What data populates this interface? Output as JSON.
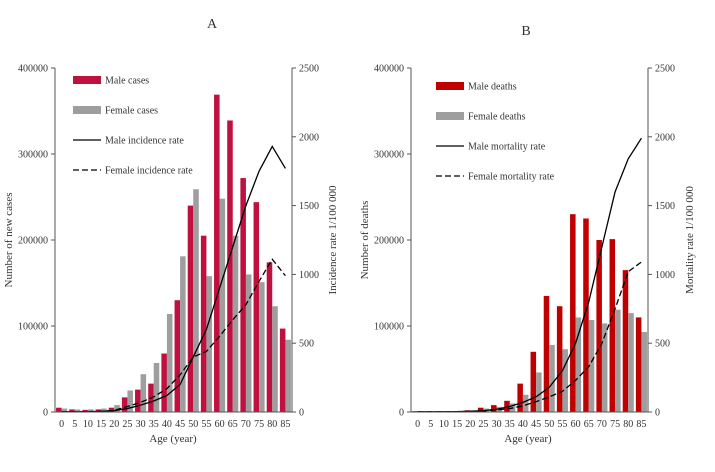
{
  "chart_data": [
    {
      "panel": "A",
      "type": "bar",
      "categories": [
        "0",
        "5",
        "10",
        "15",
        "20",
        "25",
        "30",
        "35",
        "40",
        "45",
        "50",
        "55",
        "60",
        "65",
        "70",
        "75",
        "80",
        "85"
      ],
      "xlabel": "Age (year)",
      "ylabel": "Number of new cases",
      "y2label": "Incidence rate 1/100 000",
      "ylim": [
        0,
        400000
      ],
      "y2lim": [
        0,
        2500
      ],
      "yticks": [
        "0",
        "100000",
        "200000",
        "300000",
        "400000"
      ],
      "y2ticks": [
        "0",
        "500",
        "1000",
        "1500",
        "2000",
        "2500"
      ],
      "series": [
        {
          "name": "Male cases",
          "kind": "bar",
          "color": "#c0103f",
          "values": [
            5000,
            3000,
            2500,
            3000,
            5000,
            17000,
            26000,
            33000,
            68000,
            130000,
            240000,
            205000,
            369000,
            339000,
            272000,
            244000,
            174000,
            97000
          ]
        },
        {
          "name": "Female cases",
          "kind": "bar",
          "color": "#9e9e9e",
          "values": [
            4000,
            3000,
            3000,
            4000,
            8000,
            25000,
            44000,
            57000,
            114000,
            181000,
            259000,
            158000,
            248000,
            205000,
            160000,
            151000,
            123000,
            84000
          ]
        },
        {
          "name": "Male incidence rate",
          "kind": "line",
          "dash": "solid",
          "color": "#000000",
          "values": [
            3,
            2,
            2,
            4,
            10,
            25,
            50,
            80,
            120,
            200,
            400,
            600,
            900,
            1200,
            1500,
            1750,
            1930,
            1770
          ]
        },
        {
          "name": "Female incidence rate",
          "kind": "line",
          "dash": "dashed",
          "color": "#000000",
          "values": [
            3,
            2,
            3,
            5,
            12,
            40,
            70,
            110,
            170,
            270,
            400,
            440,
            550,
            670,
            780,
            950,
            1110,
            990
          ]
        }
      ]
    },
    {
      "panel": "B",
      "type": "bar",
      "categories": [
        "0",
        "5",
        "10",
        "15",
        "20",
        "25",
        "30",
        "35",
        "40",
        "45",
        "50",
        "55",
        "60",
        "65",
        "70",
        "75",
        "80",
        "85"
      ],
      "xlabel": "Age (year)",
      "ylabel": "Number of deaths",
      "y2label": "Mortality rate 1/100 000",
      "ylim": [
        0,
        400000
      ],
      "y2lim": [
        0,
        2500
      ],
      "yticks": [
        "0",
        "100000",
        "200000",
        "300000",
        "400000"
      ],
      "y2ticks": [
        "0",
        "500",
        "1000",
        "1500",
        "2000",
        "2500"
      ],
      "series": [
        {
          "name": "Male deaths",
          "kind": "bar",
          "color": "#c00000",
          "values": [
            1000,
            1000,
            1000,
            1000,
            2000,
            5000,
            8000,
            13000,
            33000,
            70000,
            135000,
            123000,
            230000,
            225000,
            200000,
            201000,
            165000,
            110000
          ]
        },
        {
          "name": "Female deaths",
          "kind": "bar",
          "color": "#9e9e9e",
          "values": [
            800,
            800,
            800,
            1000,
            2000,
            4000,
            6000,
            10000,
            20000,
            46000,
            78000,
            73000,
            110000,
            107000,
            103000,
            119000,
            115000,
            93000
          ]
        },
        {
          "name": "Male mortality rate",
          "kind": "line",
          "dash": "solid",
          "color": "#000000",
          "values": [
            2,
            2,
            2,
            3,
            5,
            10,
            20,
            40,
            70,
            110,
            180,
            300,
            500,
            800,
            1200,
            1600,
            1840,
            1990
          ]
        },
        {
          "name": "Female mortality rate",
          "kind": "line",
          "dash": "dashed",
          "color": "#000000",
          "values": [
            2,
            2,
            2,
            3,
            4,
            7,
            15,
            25,
            45,
            75,
            110,
            150,
            230,
            330,
            500,
            750,
            1020,
            1090
          ]
        }
      ]
    }
  ]
}
